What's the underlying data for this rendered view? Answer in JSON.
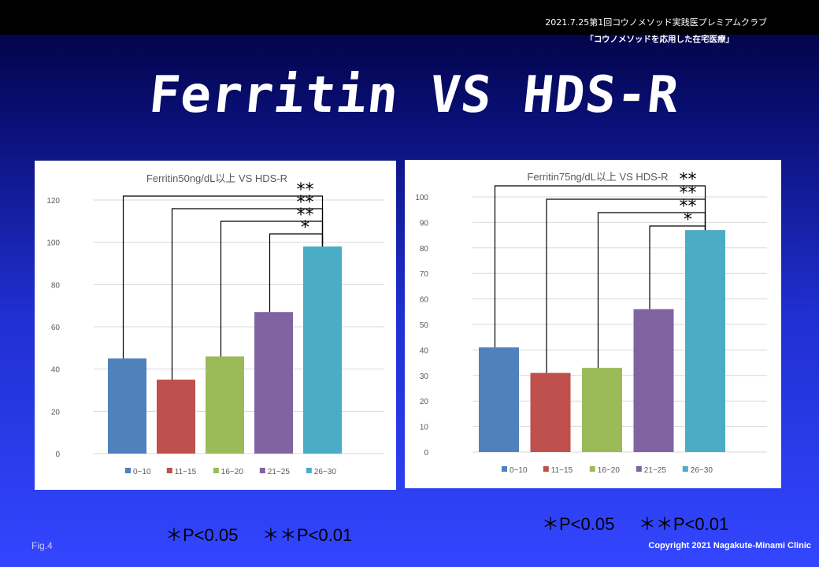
{
  "header": {
    "event": "2021.7.25第1回コウノメソッド実践医プレミアムクラブ",
    "subtitle": "「コウノメソッドを応用した在宅医療」"
  },
  "title": "Ferritin VS HDS-R",
  "chart_data": [
    {
      "type": "bar",
      "title": "Ferritin50ng/dL以上 VS HDS-R",
      "categories": [
        "0~10",
        "11~15",
        "16~20",
        "21~25",
        "26~30"
      ],
      "values": [
        45,
        35,
        46,
        67,
        98
      ],
      "ylim": [
        0,
        120
      ],
      "yticks": [
        0,
        20,
        40,
        60,
        80,
        100,
        120
      ],
      "grid": true,
      "legend": "bottom",
      "colors": [
        "#4f81bd",
        "#c0504d",
        "#9bbb59",
        "#8064a2",
        "#4bacc6"
      ],
      "significance": [
        {
          "from": "0~10",
          "to": "26~30",
          "mark": "**"
        },
        {
          "from": "11~15",
          "to": "26~30",
          "mark": "**"
        },
        {
          "from": "16~20",
          "to": "26~30",
          "mark": "**"
        },
        {
          "from": "21~25",
          "to": "26~30",
          "mark": "*"
        }
      ]
    },
    {
      "type": "bar",
      "title": "Ferritin75ng/dL以上 VS HDS-R",
      "categories": [
        "0~10",
        "11~15",
        "16~20",
        "21~25",
        "26~30"
      ],
      "values": [
        41,
        31,
        33,
        56,
        87
      ],
      "ylim": [
        0,
        100
      ],
      "yticks": [
        0,
        10,
        20,
        30,
        40,
        50,
        60,
        70,
        80,
        90,
        100
      ],
      "grid": true,
      "legend": "bottom",
      "colors": [
        "#4f81bd",
        "#c0504d",
        "#9bbb59",
        "#8064a2",
        "#4bacc6"
      ],
      "significance": [
        {
          "from": "0~10",
          "to": "26~30",
          "mark": "**"
        },
        {
          "from": "11~15",
          "to": "26~30",
          "mark": "**"
        },
        {
          "from": "16~20",
          "to": "26~30",
          "mark": "**"
        },
        {
          "from": "21~25",
          "to": "26~30",
          "mark": "*"
        }
      ]
    }
  ],
  "significance_legend": {
    "left": "＊P<0.05     ＊＊P<0.01",
    "right": "＊P<0.05     ＊＊P<0.01"
  },
  "footer": {
    "fig": "Fig.4",
    "copyright": "Copyright 2021 Nagakute-Minami Clinic"
  }
}
